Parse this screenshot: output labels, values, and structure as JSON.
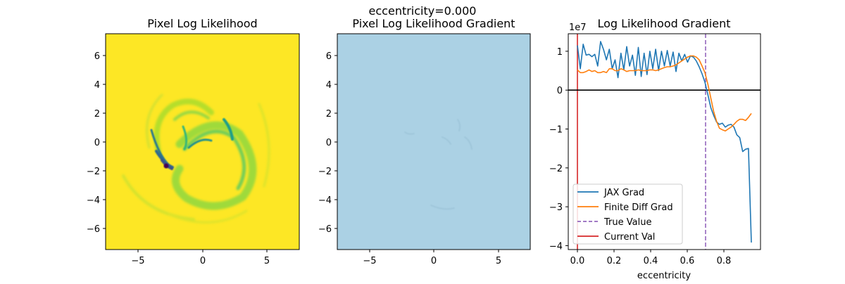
{
  "figure": {
    "suptitle": "eccentricity=0.000"
  },
  "panels": {
    "likelihood": {
      "title": "Pixel Log Likelihood",
      "colormap": "viridis",
      "background_color": "#fde725",
      "x_ticks": [
        "−5",
        "0",
        "5"
      ],
      "y_ticks": [
        "6",
        "4",
        "2",
        "0",
        "−2",
        "−4",
        "−6"
      ]
    },
    "gradient_image": {
      "title": "Pixel Log Likelihood Gradient",
      "background_color": "#abd1e4",
      "x_ticks": [
        "−5",
        "0",
        "5"
      ],
      "y_ticks": [
        "6",
        "4",
        "2",
        "0",
        "−2",
        "−4",
        "−6"
      ]
    }
  },
  "chart_data": [
    {
      "type": "heatmap",
      "title": "Pixel Log Likelihood",
      "xlim": [
        -7.5,
        7.5
      ],
      "ylim": [
        -7.5,
        7.5
      ],
      "x_ticks": [
        -5,
        0,
        5
      ],
      "y_ticks": [
        6,
        4,
        2,
        0,
        -2,
        -4,
        -6
      ],
      "colormap": "viridis",
      "background_value": "max (yellow)"
    },
    {
      "type": "heatmap",
      "title": "Pixel Log Likelihood Gradient",
      "xlim": [
        -7.5,
        7.5
      ],
      "ylim": [
        -7.5,
        7.5
      ],
      "x_ticks": [
        -5,
        0,
        5
      ],
      "y_ticks": [
        6,
        4,
        2,
        0,
        -2,
        -4,
        -6
      ],
      "background_value": "uniform light blue"
    },
    {
      "type": "line",
      "title": "Log Likelihood Gradient",
      "xlabel": "eccentricity",
      "ylabel": "",
      "y_scale_label": "1e7",
      "xlim": [
        -0.05,
        1.0
      ],
      "ylim": [
        -4.1,
        1.45
      ],
      "x_ticks": [
        0.0,
        0.2,
        0.4,
        0.6,
        0.8
      ],
      "x_tick_labels": [
        "0.0",
        "0.2",
        "0.4",
        "0.6",
        "0.8"
      ],
      "y_ticks": [
        1,
        0,
        -1,
        -2,
        -3,
        -4
      ],
      "y_tick_labels": [
        "1",
        "0",
        "−1",
        "−2",
        "−3",
        "−4"
      ],
      "grid": false,
      "legend_position": "lower-left",
      "x": [
        0.0,
        0.0158,
        0.0317,
        0.0475,
        0.0633,
        0.0792,
        0.095,
        0.1108,
        0.1267,
        0.1425,
        0.1583,
        0.1742,
        0.19,
        0.2058,
        0.2217,
        0.2375,
        0.2533,
        0.2692,
        0.285,
        0.3008,
        0.3167,
        0.3325,
        0.3483,
        0.3642,
        0.38,
        0.3958,
        0.4117,
        0.4275,
        0.4433,
        0.4592,
        0.475,
        0.4908,
        0.5067,
        0.5225,
        0.5383,
        0.5542,
        0.57,
        0.5858,
        0.6017,
        0.6175,
        0.6333,
        0.6492,
        0.665,
        0.6808,
        0.6967,
        0.7125,
        0.7283,
        0.7442,
        0.76,
        0.7758,
        0.7917,
        0.8075,
        0.8233,
        0.8392,
        0.855,
        0.8708,
        0.8867,
        0.9025,
        0.9183,
        0.9342,
        0.95
      ],
      "series": [
        {
          "name": "JAX Grad",
          "color": "#1f77b4",
          "values": [
            1.15,
            0.55,
            1.18,
            0.9,
            0.92,
            0.86,
            0.92,
            0.62,
            1.25,
            1.05,
            0.78,
            1.05,
            0.55,
            0.78,
            0.32,
            0.95,
            0.52,
            1.12,
            0.62,
            0.9,
            0.38,
            1.1,
            0.35,
            0.95,
            0.4,
            1.0,
            0.55,
            1.05,
            0.5,
            1.0,
            0.62,
            1.02,
            0.62,
            0.98,
            0.48,
            0.95,
            0.75,
            0.92,
            0.72,
            0.88,
            0.85,
            0.75,
            0.6,
            0.42,
            0.2,
            -0.12,
            -0.45,
            -0.65,
            -0.82,
            -0.88,
            -0.85,
            -0.95,
            -0.9,
            -0.88,
            -0.95,
            -1.15,
            -1.22,
            -1.58,
            -1.52,
            -1.5,
            -3.92
          ]
        },
        {
          "name": "Finite Diff Grad",
          "color": "#ff7f0e",
          "values": [
            0.52,
            0.45,
            0.45,
            0.48,
            0.52,
            0.48,
            0.5,
            0.45,
            0.45,
            0.48,
            0.45,
            0.55,
            0.55,
            0.5,
            0.5,
            0.55,
            0.52,
            0.48,
            0.5,
            0.5,
            0.5,
            0.52,
            0.5,
            0.5,
            0.5,
            0.52,
            0.52,
            0.5,
            0.52,
            0.55,
            0.58,
            0.6,
            0.6,
            0.62,
            0.65,
            0.7,
            0.75,
            0.8,
            0.85,
            0.88,
            0.88,
            0.85,
            0.78,
            0.62,
            0.45,
            0.15,
            -0.2,
            -0.55,
            -0.8,
            -0.98,
            -1.02,
            -1.05,
            -1.0,
            -0.95,
            -0.88,
            -0.8,
            -0.75,
            -0.75,
            -0.78,
            -0.7,
            -0.6
          ]
        }
      ],
      "reference_lines": [
        {
          "name": "True Value",
          "orientation": "vertical",
          "x": 0.7,
          "color": "#9467bd",
          "style": "dashed"
        },
        {
          "name": "Current Val",
          "orientation": "vertical",
          "x": 0.0,
          "color": "#d62728",
          "style": "solid"
        },
        {
          "name": "",
          "orientation": "horizontal",
          "y": 0.0,
          "color": "#000000",
          "style": "solid"
        }
      ]
    }
  ]
}
